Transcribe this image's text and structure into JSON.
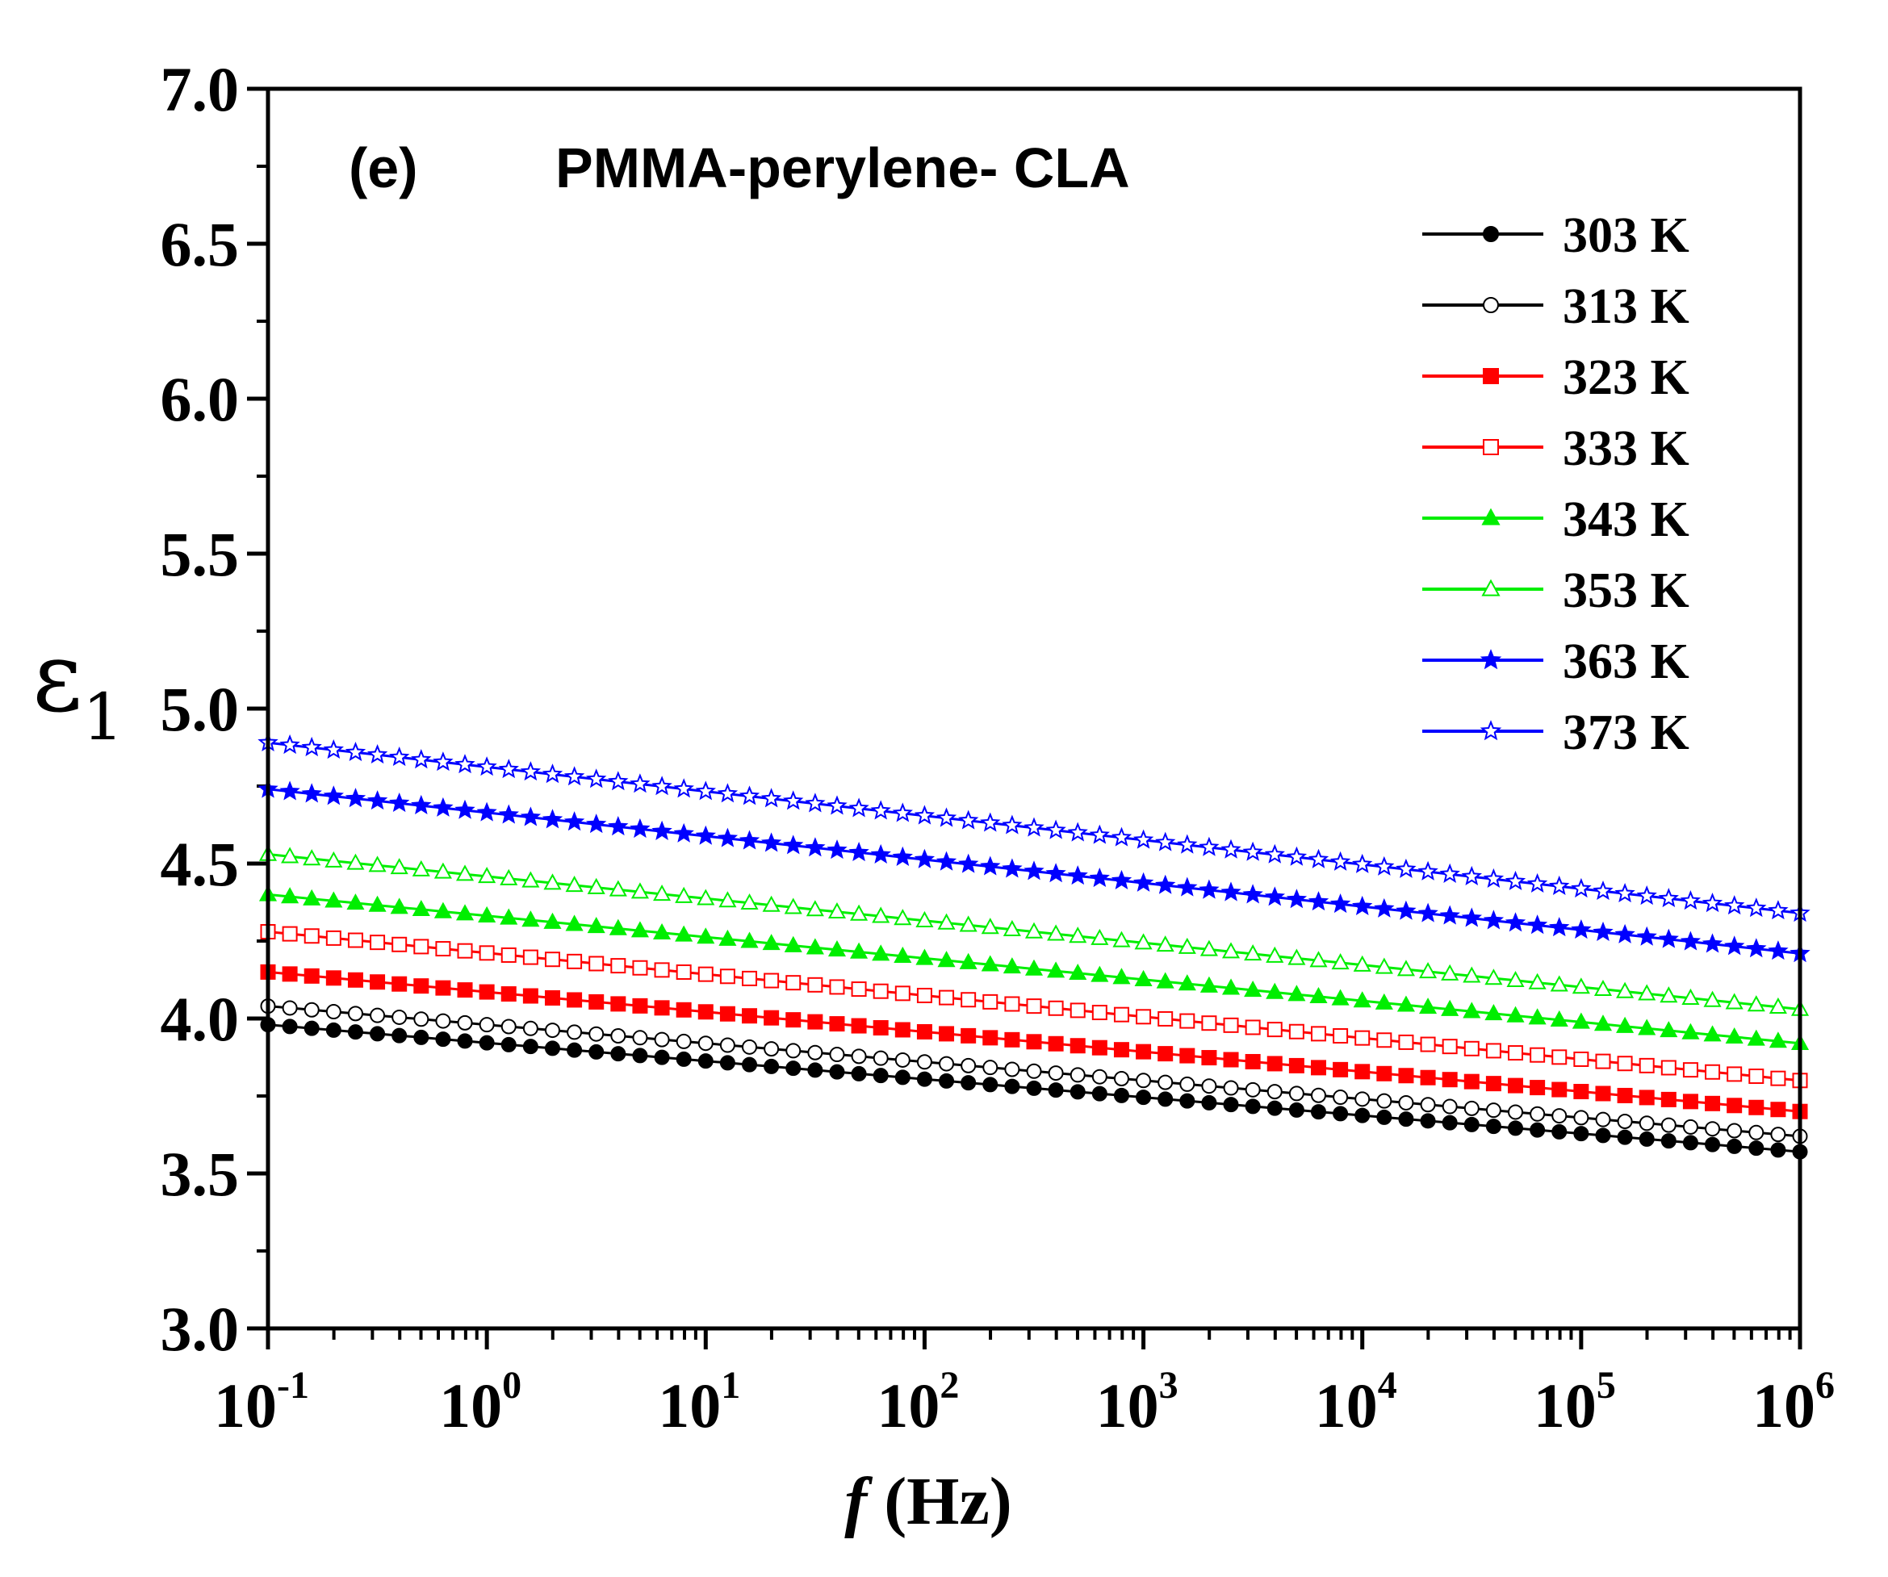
{
  "chart_data": {
    "type": "line",
    "panel_label": "(e)",
    "title": "PMMA-perylene- CLA",
    "xlabel": {
      "italic": "f",
      "rest": " (Hz)"
    },
    "ylabel": {
      "main": "ε",
      "sub": "1"
    },
    "x_scale": "log",
    "xlim": [
      0.1,
      1000000
    ],
    "ylim": [
      3.0,
      7.0
    ],
    "x_ticks": [
      {
        "base": "10",
        "exp": "-1"
      },
      {
        "base": "10",
        "exp": "0"
      },
      {
        "base": "10",
        "exp": "1"
      },
      {
        "base": "10",
        "exp": "2"
      },
      {
        "base": "10",
        "exp": "3"
      },
      {
        "base": "10",
        "exp": "4"
      },
      {
        "base": "10",
        "exp": "5"
      },
      {
        "base": "10",
        "exp": "6"
      }
    ],
    "y_ticks": [
      "3.0",
      "3.5",
      "4.0",
      "4.5",
      "5.0",
      "5.5",
      "6.0",
      "6.5",
      "7.0"
    ],
    "legend_position": "top-right",
    "series": [
      {
        "name": "303 K",
        "color": "#000000",
        "marker": "circle-filled",
        "start": 3.98,
        "end": 3.57
      },
      {
        "name": "313 K",
        "color": "#000000",
        "marker": "circle-open",
        "start": 4.04,
        "end": 3.62
      },
      {
        "name": "323 K",
        "color": "#ff0000",
        "marker": "square-filled",
        "start": 4.15,
        "end": 3.7
      },
      {
        "name": "333 K",
        "color": "#ff0000",
        "marker": "square-open",
        "start": 4.28,
        "end": 3.8
      },
      {
        "name": "343 K",
        "color": "#00ee00",
        "marker": "triangle-filled",
        "start": 4.4,
        "end": 3.92
      },
      {
        "name": "353 K",
        "color": "#00ee00",
        "marker": "triangle-open",
        "start": 4.53,
        "end": 4.03
      },
      {
        "name": "363 K",
        "color": "#0000ff",
        "marker": "star-filled",
        "start": 4.74,
        "end": 4.21
      },
      {
        "name": "373 K",
        "color": "#0000ff",
        "marker": "star-open",
        "start": 4.89,
        "end": 4.34
      }
    ]
  }
}
